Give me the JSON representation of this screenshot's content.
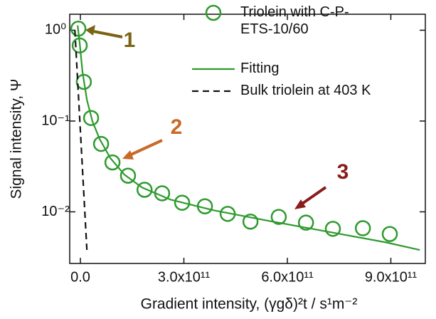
{
  "chart_data": {
    "type": "scatter",
    "x_label": "Gradient intensity, (γgδ)²t / s¹m⁻²",
    "y_label": "Signal intensity, Ψ",
    "log_y": true,
    "xlim": [
      -31000000000,
      1000000000000
    ],
    "ylim": [
      0.0027,
      1.5
    ],
    "xticks": [
      {
        "value": 0,
        "label": "0.0"
      },
      {
        "value": 300000000000,
        "label": "3.0x10¹¹"
      },
      {
        "value": 600000000000,
        "label": "6.0x10¹¹"
      },
      {
        "value": 900000000000,
        "label": "9.0x10¹¹"
      }
    ],
    "yticks": [
      {
        "value": 1,
        "label": "10⁰"
      },
      {
        "value": 0.1,
        "label": "10⁻¹"
      },
      {
        "value": 0.01,
        "label": "10⁻²"
      }
    ],
    "legend": "top-right",
    "series": [
      {
        "name": "Triolein with C-P-ETS-10/60",
        "color": "#2f9a2f",
        "mode": "markers",
        "x": [
          -6000000000,
          -2000000000,
          10000000000,
          31000000000,
          60000000000,
          93000000000,
          138000000000,
          186000000000,
          237000000000,
          295000000000,
          361000000000,
          427000000000,
          493000000000,
          575000000000,
          654000000000,
          732000000000,
          819000000000,
          897000000000
        ],
        "values": [
          1.04,
          0.68,
          0.27,
          0.108,
          0.056,
          0.035,
          0.025,
          0.0175,
          0.016,
          0.0126,
          0.0115,
          0.0095,
          0.0078,
          0.0088,
          0.0076,
          0.0065,
          0.0066,
          0.0057
        ]
      },
      {
        "name": "Fitting",
        "color": "#2f9a2f",
        "mode": "line",
        "x": [
          -8000000000,
          -2000000000,
          6000000000,
          19000000000,
          35000000000,
          56000000000,
          87000000000,
          128000000000,
          179000000000,
          262000000000,
          386000000000,
          550000000000,
          722000000000,
          887000000000,
          984000000000
        ],
        "values": [
          1.13,
          0.72,
          0.35,
          0.17,
          0.099,
          0.063,
          0.039,
          0.0256,
          0.0185,
          0.0136,
          0.0104,
          0.0079,
          0.006,
          0.0046,
          0.0038
        ]
      },
      {
        "name": "Bulk triolein at 403 K",
        "color": "#111111",
        "mode": "line",
        "dashed": true,
        "x": [
          -16000000000,
          19000000000
        ],
        "values": [
          1.0,
          0.0037
        ]
      }
    ],
    "annotations": [
      {
        "text": "1",
        "color": "#7a6414"
      },
      {
        "text": "2",
        "color": "#c86a28"
      },
      {
        "text": "3",
        "color": "#8b1c1c"
      }
    ]
  }
}
